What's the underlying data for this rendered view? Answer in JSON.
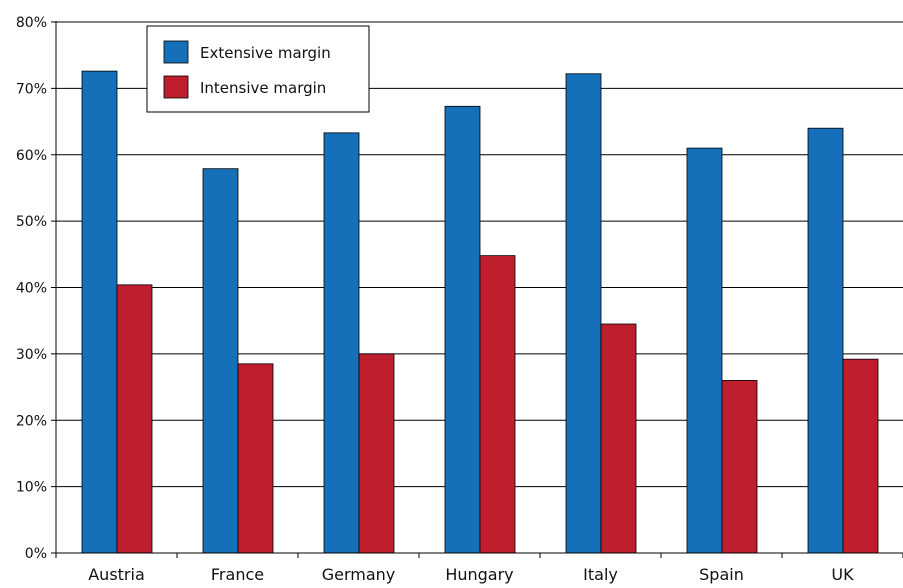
{
  "chart_data": {
    "type": "bar",
    "categories": [
      "Austria",
      "France",
      "Germany",
      "Hungary",
      "Italy",
      "Spain",
      "UK"
    ],
    "series": [
      {
        "name": "Extensive margin",
        "color": "#1670b9",
        "values": [
          72.6,
          57.9,
          63.3,
          67.3,
          72.2,
          61.0,
          64.0
        ]
      },
      {
        "name": "Intensive margin",
        "color": "#be1e2d",
        "values": [
          40.4,
          28.5,
          30.0,
          44.8,
          34.5,
          26.0,
          29.2
        ]
      }
    ],
    "ylim": [
      0,
      80
    ],
    "yticks": [
      0,
      10,
      20,
      30,
      40,
      50,
      60,
      70,
      80
    ],
    "ytick_labels": [
      "0%",
      "10%",
      "20%",
      "30%",
      "40%",
      "50%",
      "60%",
      "70%",
      "80%"
    ],
    "grid": true,
    "legend_position": "top-left",
    "title": "",
    "xlabel": "",
    "ylabel": ""
  }
}
